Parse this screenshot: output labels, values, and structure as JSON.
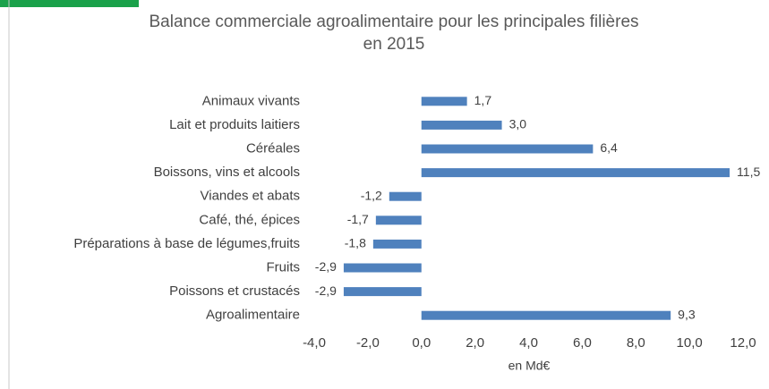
{
  "chart_data": {
    "type": "bar",
    "orientation": "horizontal",
    "title": [
      "Balance commerciale agroalimentaire pour les principales filières",
      "en 2015"
    ],
    "x_label": "en Md€",
    "categories": [
      "Animaux vivants",
      "Lait et produits laitiers",
      "Céréales",
      "Boissons, vins et alcools",
      "Viandes et abats",
      "Café, thé, épices",
      "Préparations à base de légumes,fruits",
      "Fruits",
      "Poissons et crustacés",
      "Agroalimentaire"
    ],
    "values": [
      1.7,
      3.0,
      6.4,
      11.5,
      -1.2,
      -1.7,
      -1.8,
      -2.9,
      -2.9,
      9.3
    ],
    "value_labels": [
      "1,7",
      "3,0",
      "6,4",
      "11,5",
      "-1,2",
      "-1,7",
      "-1,8",
      "-2,9",
      "-2,9",
      "9,3"
    ],
    "color": "#4f81bd",
    "xlim": [
      -4,
      12
    ],
    "xticks": [
      {
        "value": -4,
        "label": "-4,0"
      },
      {
        "value": -2,
        "label": "-2,0"
      },
      {
        "value": 0,
        "label": "0,0"
      },
      {
        "value": 2,
        "label": "2,0"
      },
      {
        "value": 4,
        "label": "4,0"
      },
      {
        "value": 6,
        "label": "6,0"
      },
      {
        "value": 8,
        "label": "8,0"
      },
      {
        "value": 10,
        "label": "10,0"
      },
      {
        "value": 12,
        "label": "12,0"
      }
    ],
    "grid": false
  }
}
